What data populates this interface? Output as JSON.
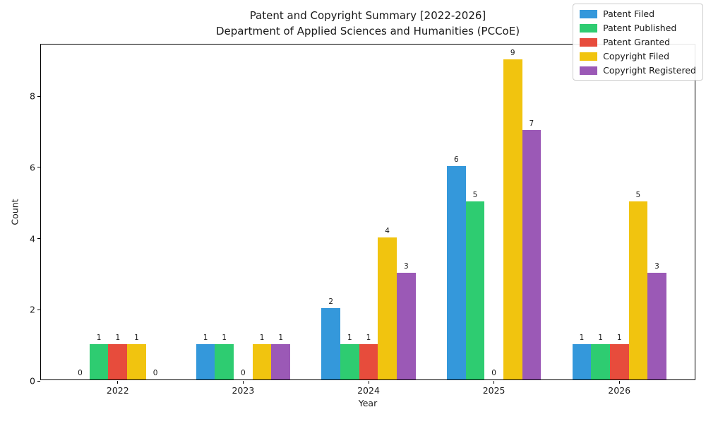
{
  "figure": {
    "title_line1": "Patent and Copyright Summary [2022-2026]",
    "title_line2": "Department of Applied Sciences and Humanities (PCCoE)"
  },
  "chart_data": {
    "type": "bar",
    "title": "Patent and Copyright Summary [2022-2026]",
    "subtitle": "Department of Applied Sciences and Humanities (PCCoE)",
    "xlabel": "Year",
    "ylabel": "Count",
    "categories": [
      "2022",
      "2023",
      "2024",
      "2025",
      "2026"
    ],
    "series": [
      {
        "name": "Patent Filed",
        "color": "#3498db",
        "values": [
          0,
          1,
          2,
          6,
          1
        ]
      },
      {
        "name": "Patent Published",
        "color": "#2ecc71",
        "values": [
          1,
          1,
          1,
          5,
          1
        ]
      },
      {
        "name": "Patent Granted",
        "color": "#e74c3c",
        "values": [
          1,
          0,
          1,
          0,
          1
        ]
      },
      {
        "name": "Copyright Filed",
        "color": "#f1c40f",
        "values": [
          1,
          1,
          4,
          9,
          5
        ]
      },
      {
        "name": "Copyright Registered",
        "color": "#9b59b6",
        "values": [
          0,
          1,
          3,
          7,
          3
        ]
      }
    ],
    "y_ticks": [
      0,
      2,
      4,
      6,
      8
    ],
    "ylim": [
      0,
      9.45
    ],
    "bar_value_labels": true,
    "grid": false,
    "legend_position": "upper right",
    "frame": "full-box"
  }
}
